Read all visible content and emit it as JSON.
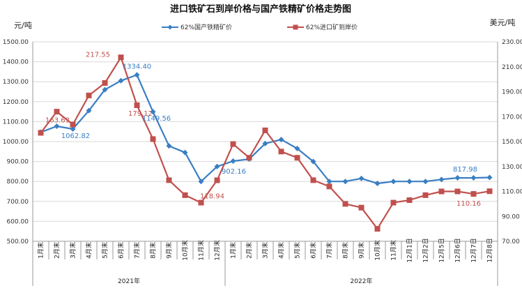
{
  "chart_data": {
    "type": "line",
    "title": "进口铁矿石到岸价格与国产铁精矿价格走势图",
    "y_left_label": "元/吨",
    "y_right_label": "美元/吨",
    "y_left": {
      "min": 500,
      "max": 1500,
      "step": 100,
      "tick_labels": [
        "500.00",
        "600.00",
        "700.00",
        "800.00",
        "900.00",
        "1000.00",
        "1100.00",
        "1200.00",
        "1300.00",
        "1400.00",
        "1500.00"
      ]
    },
    "y_right": {
      "min": 70,
      "max": 230,
      "step": 20,
      "tick_labels": [
        "70.00",
        "90.00",
        "110.00",
        "130.00",
        "150.00",
        "170.00",
        "190.00",
        "210.00",
        "230.00"
      ]
    },
    "categories": [
      "1月末",
      "2月末",
      "3月末",
      "4月末",
      "5月末",
      "6月末",
      "7月末",
      "8月末",
      "9月末",
      "10月末",
      "11月末",
      "12月末",
      "1月末",
      "2月末",
      "3月末",
      "4月末",
      "5月末",
      "6月末",
      "7月末",
      "8月末",
      "9月末",
      "10月末",
      "11月末",
      "12月1日",
      "12月2日",
      "12月5日",
      "12月6日",
      "12月7日",
      "12月8日"
    ],
    "year_groups": [
      {
        "label": "2021年",
        "start": 0,
        "end": 11
      },
      {
        "label": "2022年",
        "start": 12,
        "end": 28
      }
    ],
    "series": [
      {
        "name": "62%国产铁精矿价",
        "axis": "left",
        "color": "#3a7ec3",
        "marker": "diamond",
        "values": [
          1047,
          1077,
          1062.82,
          1155,
          1260,
          1305,
          1334.4,
          1149.56,
          978,
          945,
          800,
          875,
          902.16,
          912,
          990,
          1010,
          965,
          900,
          800,
          800,
          815,
          790,
          800,
          800,
          800,
          810,
          818,
          817.98,
          820
        ],
        "labels": [
          {
            "index": 2,
            "text": "1062.82"
          },
          {
            "index": 6,
            "text": "1334.40"
          },
          {
            "index": 7,
            "text": "1149.56"
          },
          {
            "index": 12,
            "text": "902.16"
          },
          {
            "index": 27,
            "text": "817.98"
          }
        ]
      },
      {
        "name": "62%进口矿到岸价",
        "axis": "right",
        "color": "#c0504d",
        "marker": "square",
        "values": [
          157,
          174,
          163.63,
          187,
          197,
          217.55,
          179.12,
          152,
          119,
          107,
          101,
          118.94,
          148,
          137,
          159,
          142,
          137,
          119,
          114,
          100,
          97,
          80,
          101,
          103,
          107,
          110,
          110,
          108,
          110.16
        ],
        "labels": [
          {
            "index": 2,
            "text": "163.63"
          },
          {
            "index": 5,
            "text": "217.55"
          },
          {
            "index": 6,
            "text": "179.12"
          },
          {
            "index": 11,
            "text": "118.94"
          },
          {
            "index": 28,
            "text": "110.16"
          }
        ]
      }
    ]
  }
}
